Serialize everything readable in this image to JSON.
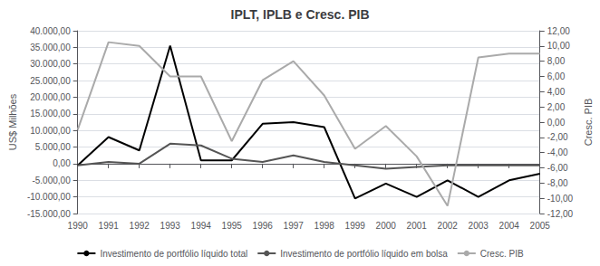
{
  "chart_data": {
    "type": "line",
    "title": "IPLT, IPLB e Cresc. PIB",
    "categories": [
      "1990",
      "1991",
      "1992",
      "1993",
      "1994",
      "1995",
      "1996",
      "1997",
      "1998",
      "1999",
      "2000",
      "2001",
      "2002",
      "2003",
      "2004",
      "2005"
    ],
    "series": [
      {
        "name": "Investimento de portfólio líquido total",
        "color": "#000000",
        "values": [
          -500,
          8000,
          4000,
          35500,
          1000,
          1000,
          12000,
          12500,
          11000,
          -10500,
          -6000,
          -10000,
          -5000,
          -10000,
          -5000,
          -3000
        ]
      },
      {
        "name": "Investimento de portfólio líquido em bolsa",
        "color": "#555555",
        "values": [
          -500,
          500,
          0,
          6000,
          5500,
          1500,
          500,
          2500,
          500,
          -500,
          -1500,
          -1000,
          -500,
          -500,
          -500,
          -500
        ]
      },
      {
        "name": "Cresc. PIB",
        "color": "#aaaaaa",
        "axis": "y2",
        "values": [
          -1.0,
          10.5,
          10.0,
          6.0,
          6.0,
          -2.5,
          5.5,
          8.0,
          3.5,
          -3.5,
          -0.5,
          -4.5,
          -11.0,
          8.5,
          9.0,
          9.0
        ]
      }
    ],
    "ylabel": "US$ Milhões",
    "y2label": "Cresc. PIB",
    "ylim": [
      -15000,
      40000
    ],
    "yticks": [
      {
        "value": -15000,
        "label": "-15.000,00"
      },
      {
        "value": -10000,
        "label": "-10.000,00"
      },
      {
        "value": -5000,
        "label": "-5.000,00"
      },
      {
        "value": 0,
        "label": "0,00"
      },
      {
        "value": 5000,
        "label": "5.000,00"
      },
      {
        "value": 10000,
        "label": "10.000,00"
      },
      {
        "value": 15000,
        "label": "15.000,00"
      },
      {
        "value": 20000,
        "label": "20.000,00"
      },
      {
        "value": 25000,
        "label": "25.000,00"
      },
      {
        "value": 30000,
        "label": "30.000,00"
      },
      {
        "value": 35000,
        "label": "35.000,00"
      },
      {
        "value": 40000,
        "label": "40.000,00"
      }
    ],
    "y2lim": [
      -12,
      12
    ],
    "y2ticks": [
      {
        "value": -12,
        "label": "-12,00"
      },
      {
        "value": -10,
        "label": "-10,00"
      },
      {
        "value": -8,
        "label": "-8,00"
      },
      {
        "value": -6,
        "label": "-6,00"
      },
      {
        "value": -4,
        "label": "-4,00"
      },
      {
        "value": -2,
        "label": "-2,00"
      },
      {
        "value": 0,
        "label": "0,00"
      },
      {
        "value": 2,
        "label": "2,00"
      },
      {
        "value": 4,
        "label": "4,00"
      },
      {
        "value": 6,
        "label": "6,00"
      },
      {
        "value": 8,
        "label": "8,00"
      },
      {
        "value": 10,
        "label": "10,00"
      },
      {
        "value": 12,
        "label": "12,00"
      }
    ],
    "grid": true,
    "legend": "bottom"
  }
}
